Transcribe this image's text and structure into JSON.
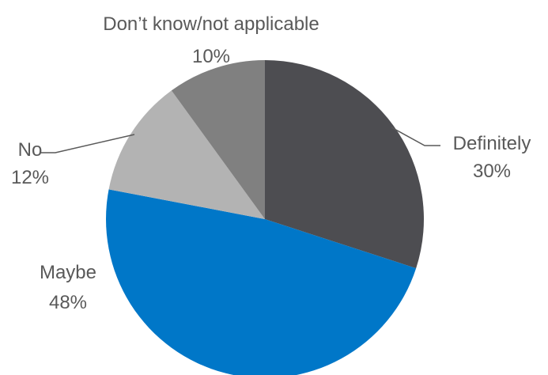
{
  "chart_data": {
    "type": "pie",
    "title": "",
    "slices": [
      {
        "label": "Definitely",
        "value": 30,
        "value_label": "30%",
        "color": "#4d4d51"
      },
      {
        "label": "Maybe",
        "value": 48,
        "value_label": "48%",
        "color": "#0077c8"
      },
      {
        "label": "No",
        "value": 12,
        "value_label": "12%",
        "color": "#b3b3b3"
      },
      {
        "label": "Don’t know/not applicable",
        "value": 10,
        "value_label": "10%",
        "color": "#808080"
      }
    ],
    "start_angle": "12 o'clock",
    "direction": "clockwise",
    "labels": "outside with leader lines",
    "legend": "none"
  }
}
